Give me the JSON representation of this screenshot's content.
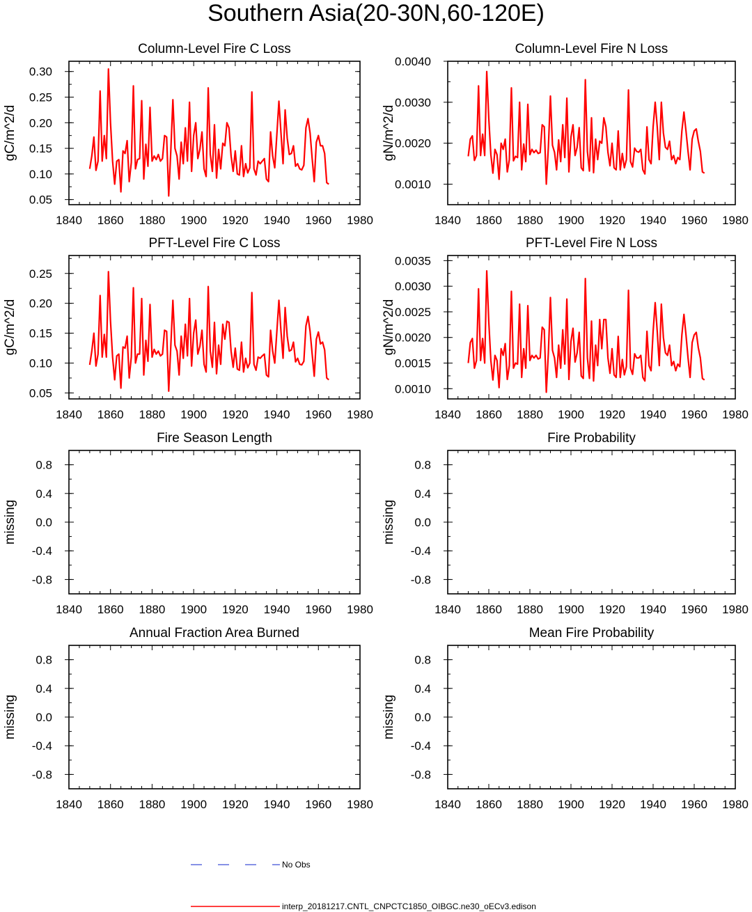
{
  "page_title": "Southern Asia(20-30N,60-120E)",
  "series_colors": {
    "model": "#ff0000",
    "obs": "#3d4fd6"
  },
  "legend": {
    "obs_label": "No Obs",
    "model_label": "interp_20181217.CNTL_CNPCTC1850_OIBGC.ne30_oECv3.edison"
  },
  "chart_data": [
    {
      "type": "line",
      "title": "Column-Level Fire C Loss",
      "xlabel": "",
      "ylabel": "gC/m^2/d",
      "xlim": [
        1840,
        1980
      ],
      "ylim": [
        0.04,
        0.32
      ],
      "xticks": [
        "1840",
        "1860",
        "1880",
        "1900",
        "1920",
        "1940",
        "1960",
        "1980"
      ],
      "yticks": [
        "0.05",
        "0.10",
        "0.15",
        "0.20",
        "0.25",
        "0.30"
      ],
      "x_start": 1850,
      "series": [
        {
          "name": "interp_20181217.CNTL_CNPCTC1850_OIBGC.ne30_oECv3.edison",
          "values": [
            0.11,
            0.135,
            0.172,
            0.107,
            0.125,
            0.262,
            0.125,
            0.175,
            0.13,
            0.305,
            0.2,
            0.125,
            0.08,
            0.125,
            0.128,
            0.065,
            0.145,
            0.14,
            0.165,
            0.085,
            0.122,
            0.272,
            0.11,
            0.128,
            0.13,
            0.243,
            0.09,
            0.158,
            0.115,
            0.23,
            0.125,
            0.135,
            0.128,
            0.138,
            0.125,
            0.13,
            0.175,
            0.172,
            0.057,
            0.145,
            0.245,
            0.15,
            0.135,
            0.09,
            0.162,
            0.12,
            0.19,
            0.125,
            0.24,
            0.105,
            0.175,
            0.2,
            0.13,
            0.148,
            0.182,
            0.11,
            0.095,
            0.268,
            0.138,
            0.105,
            0.196,
            0.092,
            0.148,
            0.11,
            0.16,
            0.155,
            0.2,
            0.19,
            0.135,
            0.105,
            0.145,
            0.1,
            0.098,
            0.155,
            0.095,
            0.12,
            0.102,
            0.112,
            0.26,
            0.11,
            0.098,
            0.125,
            0.12,
            0.125,
            0.13,
            0.09,
            0.085,
            0.182,
            0.135,
            0.112,
            0.176,
            0.242,
            0.18,
            0.12,
            0.225,
            0.17,
            0.138,
            0.14,
            0.155,
            0.115,
            0.12,
            0.11,
            0.108,
            0.117,
            0.19,
            0.208,
            0.18,
            0.13,
            0.085,
            0.162,
            0.175,
            0.155,
            0.155,
            0.14,
            0.083,
            0.08
          ]
        }
      ]
    },
    {
      "type": "line",
      "title": "Column-Level Fire N Loss",
      "xlabel": "",
      "ylabel": "gN/m^2/d",
      "xlim": [
        1840,
        1980
      ],
      "ylim": [
        0.0005,
        0.004
      ],
      "xticks": [
        "1840",
        "1860",
        "1880",
        "1900",
        "1920",
        "1940",
        "1960",
        "1980"
      ],
      "yticks": [
        "0.0010",
        "0.0020",
        "0.0030",
        "0.0040"
      ],
      "x_start": 1850,
      "series": [
        {
          "name": "interp_20181217.CNTL_CNPCTC1850_OIBGC.ne30_oECv3.edison",
          "values": [
            0.00168,
            0.0021,
            0.00218,
            0.00158,
            0.0017,
            0.0034,
            0.0017,
            0.00222,
            0.0017,
            0.00375,
            0.0026,
            0.00172,
            0.00127,
            0.00185,
            0.00172,
            0.00112,
            0.002,
            0.00185,
            0.0021,
            0.0013,
            0.0016,
            0.00335,
            0.00157,
            0.00168,
            0.00165,
            0.003,
            0.00135,
            0.00198,
            0.00155,
            0.00295,
            0.00172,
            0.00185,
            0.00177,
            0.00183,
            0.00175,
            0.00177,
            0.00245,
            0.0024,
            0.001,
            0.0019,
            0.00315,
            0.00195,
            0.00178,
            0.00135,
            0.00208,
            0.00155,
            0.00245,
            0.00165,
            0.0031,
            0.0013,
            0.00215,
            0.00245,
            0.0017,
            0.0019,
            0.00238,
            0.0014,
            0.00133,
            0.00355,
            0.0018,
            0.00132,
            0.00262,
            0.00128,
            0.0021,
            0.0016,
            0.00205,
            0.002,
            0.00262,
            0.0024,
            0.00178,
            0.00145,
            0.002,
            0.0014,
            0.00135,
            0.0023,
            0.00135,
            0.00175,
            0.0014,
            0.0016,
            0.0033,
            0.00155,
            0.00142,
            0.00188,
            0.0018,
            0.00178,
            0.00185,
            0.00135,
            0.00125,
            0.0024,
            0.0016,
            0.0015,
            0.0024,
            0.003,
            0.0024,
            0.0016,
            0.003,
            0.00225,
            0.0019,
            0.00185,
            0.00205,
            0.0016,
            0.0017,
            0.0015,
            0.00165,
            0.0016,
            0.0023,
            0.00276,
            0.0023,
            0.0018,
            0.00135,
            0.0021,
            0.0023,
            0.00235,
            0.00205,
            0.0018,
            0.0013,
            0.00127
          ]
        }
      ]
    },
    {
      "type": "line",
      "title": "PFT-Level Fire C Loss",
      "xlabel": "",
      "ylabel": "gC/m^2/d",
      "xlim": [
        1840,
        1980
      ],
      "ylim": [
        0.04,
        0.28
      ],
      "xticks": [
        "1840",
        "1860",
        "1880",
        "1900",
        "1920",
        "1940",
        "1960",
        "1980"
      ],
      "yticks": [
        "0.05",
        "0.10",
        "0.15",
        "0.20",
        "0.25"
      ],
      "x_start": 1850,
      "series": [
        {
          "name": "interp_20181217.CNTL_CNPCTC1850_OIBGC.ne30_oECv3.edison",
          "values": [
            0.097,
            0.12,
            0.15,
            0.095,
            0.115,
            0.213,
            0.11,
            0.148,
            0.11,
            0.253,
            0.17,
            0.11,
            0.072,
            0.112,
            0.115,
            0.058,
            0.127,
            0.125,
            0.145,
            0.075,
            0.11,
            0.226,
            0.1,
            0.115,
            0.115,
            0.208,
            0.08,
            0.138,
            0.103,
            0.198,
            0.11,
            0.123,
            0.115,
            0.12,
            0.112,
            0.115,
            0.155,
            0.153,
            0.053,
            0.128,
            0.205,
            0.13,
            0.12,
            0.08,
            0.145,
            0.108,
            0.165,
            0.112,
            0.208,
            0.095,
            0.15,
            0.172,
            0.115,
            0.128,
            0.155,
            0.098,
            0.085,
            0.228,
            0.12,
            0.093,
            0.168,
            0.082,
            0.13,
            0.098,
            0.165,
            0.14,
            0.17,
            0.168,
            0.12,
            0.093,
            0.125,
            0.09,
            0.088,
            0.135,
            0.085,
            0.108,
            0.092,
            0.1,
            0.218,
            0.098,
            0.088,
            0.11,
            0.108,
            0.112,
            0.115,
            0.08,
            0.077,
            0.155,
            0.12,
            0.1,
            0.152,
            0.205,
            0.153,
            0.108,
            0.193,
            0.145,
            0.12,
            0.122,
            0.135,
            0.102,
            0.108,
            0.098,
            0.097,
            0.103,
            0.162,
            0.178,
            0.153,
            0.115,
            0.078,
            0.14,
            0.152,
            0.132,
            0.135,
            0.122,
            0.075,
            0.072
          ]
        }
      ]
    },
    {
      "type": "line",
      "title": "PFT-Level Fire N Loss",
      "xlabel": "",
      "ylabel": "gN/m^2/d",
      "xlim": [
        1840,
        1980
      ],
      "ylim": [
        0.0008,
        0.0036
      ],
      "xticks": [
        "1840",
        "1860",
        "1880",
        "1900",
        "1920",
        "1940",
        "1960",
        "1980"
      ],
      "yticks": [
        "0.0010",
        "0.0015",
        "0.0020",
        "0.0025",
        "0.0030",
        "0.0035"
      ],
      "x_start": 1850,
      "series": [
        {
          "name": "interp_20181217.CNTL_CNPCTC1850_OIBGC.ne30_oECv3.edison",
          "values": [
            0.0015,
            0.0019,
            0.00198,
            0.0014,
            0.00155,
            0.00295,
            0.00155,
            0.00198,
            0.0015,
            0.0033,
            0.0023,
            0.00155,
            0.00117,
            0.00165,
            0.00155,
            0.00102,
            0.00178,
            0.00165,
            0.00188,
            0.00118,
            0.00145,
            0.0029,
            0.0014,
            0.0015,
            0.00148,
            0.00265,
            0.00122,
            0.00178,
            0.0014,
            0.00262,
            0.00155,
            0.00165,
            0.0016,
            0.00165,
            0.00158,
            0.0016,
            0.0022,
            0.00215,
            0.00093,
            0.0017,
            0.00278,
            0.00175,
            0.0016,
            0.00122,
            0.00185,
            0.0014,
            0.00215,
            0.00148,
            0.00275,
            0.00118,
            0.00192,
            0.00218,
            0.00152,
            0.0017,
            0.0021,
            0.00125,
            0.0012,
            0.00315,
            0.0016,
            0.0012,
            0.00232,
            0.00115,
            0.00185,
            0.00145,
            0.00235,
            0.00178,
            0.00235,
            0.00235,
            0.0016,
            0.0013,
            0.00178,
            0.00127,
            0.00122,
            0.00202,
            0.00122,
            0.00157,
            0.00127,
            0.00143,
            0.00292,
            0.0014,
            0.00128,
            0.00168,
            0.0016,
            0.0016,
            0.00165,
            0.00122,
            0.00115,
            0.00212,
            0.00145,
            0.00135,
            0.00212,
            0.00268,
            0.00212,
            0.00145,
            0.00265,
            0.002,
            0.0017,
            0.00165,
            0.00185,
            0.00145,
            0.00153,
            0.00135,
            0.00148,
            0.00143,
            0.00205,
            0.00245,
            0.00205,
            0.0016,
            0.00122,
            0.0019,
            0.00205,
            0.0021,
            0.0018,
            0.0016,
            0.0012,
            0.00117
          ]
        }
      ]
    },
    {
      "type": "line",
      "title": "Fire Season Length",
      "xlabel": "",
      "ylabel": "missing",
      "xlim": [
        1840,
        1980
      ],
      "ylim": [
        -1.0,
        1.0
      ],
      "xticks": [
        "1840",
        "1860",
        "1880",
        "1900",
        "1920",
        "1940",
        "1960",
        "1980"
      ],
      "yticks": [
        "-0.8",
        "-0.4",
        "0.0",
        "0.4",
        "0.8"
      ],
      "x_start": 1850,
      "series": []
    },
    {
      "type": "line",
      "title": "Fire Probability",
      "xlabel": "",
      "ylabel": "missing",
      "xlim": [
        1840,
        1980
      ],
      "ylim": [
        -1.0,
        1.0
      ],
      "xticks": [
        "1840",
        "1860",
        "1880",
        "1900",
        "1920",
        "1940",
        "1960",
        "1980"
      ],
      "yticks": [
        "-0.8",
        "-0.4",
        "0.0",
        "0.4",
        "0.8"
      ],
      "x_start": 1850,
      "series": []
    },
    {
      "type": "line",
      "title": "Annual Fraction Area Burned",
      "xlabel": "",
      "ylabel": "missing",
      "xlim": [
        1840,
        1980
      ],
      "ylim": [
        -1.0,
        1.0
      ],
      "xticks": [
        "1840",
        "1860",
        "1880",
        "1900",
        "1920",
        "1940",
        "1960",
        "1980"
      ],
      "yticks": [
        "-0.8",
        "-0.4",
        "0.0",
        "0.4",
        "0.8"
      ],
      "x_start": 1850,
      "series": []
    },
    {
      "type": "line",
      "title": "Mean Fire Probability",
      "xlabel": "",
      "ylabel": "missing",
      "xlim": [
        1840,
        1980
      ],
      "ylim": [
        -1.0,
        1.0
      ],
      "xticks": [
        "1840",
        "1860",
        "1880",
        "1900",
        "1920",
        "1940",
        "1960",
        "1980"
      ],
      "yticks": [
        "-0.8",
        "-0.4",
        "0.0",
        "0.4",
        "0.8"
      ],
      "x_start": 1850,
      "series": []
    }
  ]
}
